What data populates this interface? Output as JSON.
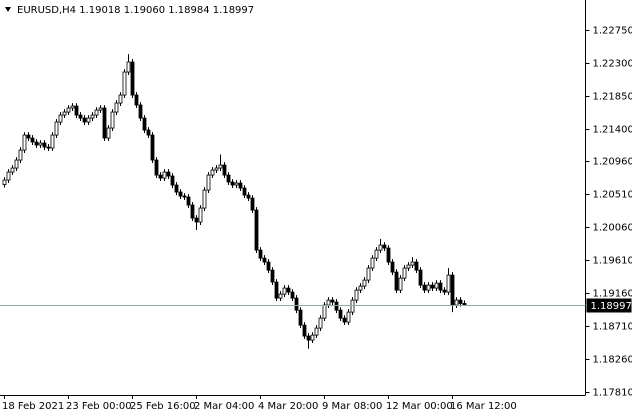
{
  "chart_data": {
    "type": "candlestick",
    "title": "EURUSD,H4  1.19018 1.19060 1.18984 1.18997",
    "ylim": [
      1.17769,
      1.23159
    ],
    "yticks": [
      {
        "value": 1.2275,
        "label": "1.22750"
      },
      {
        "value": 1.223,
        "label": "1.22300"
      },
      {
        "value": 1.2185,
        "label": "1.21850"
      },
      {
        "value": 1.214,
        "label": "1.21400"
      },
      {
        "value": 1.2096,
        "label": "1.20960"
      },
      {
        "value": 1.2051,
        "label": "1.20510"
      },
      {
        "value": 1.2006,
        "label": "1.20060"
      },
      {
        "value": 1.1961,
        "label": "1.19610"
      },
      {
        "value": 1.1916,
        "label": "1.19160"
      },
      {
        "value": 1.1871,
        "label": "1.18710"
      },
      {
        "value": 1.1826,
        "label": "1.18260"
      },
      {
        "value": 1.1781,
        "label": "1.17810"
      }
    ],
    "up_color": "#ffffff",
    "down_color": "#000000",
    "outline_color": "#000000",
    "price_line_color": "#8fa8a0",
    "categories": [
      "18 Feb 2021",
      null,
      null,
      null,
      null,
      null,
      null,
      null,
      null,
      null,
      null,
      null,
      null,
      null,
      null,
      null,
      "23 Feb 00:00",
      null,
      null,
      null,
      null,
      null,
      null,
      null,
      null,
      null,
      null,
      null,
      null,
      null,
      null,
      null,
      "25 Feb 16:00",
      null,
      null,
      null,
      null,
      null,
      null,
      null,
      null,
      null,
      null,
      null,
      null,
      null,
      null,
      null,
      "2 Mar 04:00",
      null,
      null,
      null,
      null,
      null,
      null,
      null,
      null,
      null,
      null,
      null,
      null,
      null,
      null,
      null,
      "4 Mar 20:00",
      null,
      null,
      null,
      null,
      null,
      null,
      null,
      null,
      null,
      null,
      null,
      null,
      null,
      null,
      null,
      "9 Mar 08:00",
      null,
      null,
      null,
      null,
      null,
      null,
      null,
      null,
      null,
      null,
      null,
      null,
      null,
      null,
      null,
      "12 Mar 00:00",
      null,
      null,
      null,
      null,
      null,
      null,
      null,
      null,
      null,
      null,
      null,
      null,
      null,
      null,
      null,
      "16 Mar 12:00",
      null,
      null,
      null
    ],
    "candles": [
      [
        1.2064,
        1.20742,
        1.206,
        1.20702
      ],
      [
        1.20702,
        1.20851,
        1.20662,
        1.20811
      ],
      [
        1.20811,
        1.20906,
        1.20771,
        1.20866
      ],
      [
        1.20866,
        1.21015,
        1.20826,
        1.20975
      ],
      [
        1.20975,
        1.21151,
        1.20935,
        1.21111
      ],
      [
        1.21111,
        1.21356,
        1.21071,
        1.21316
      ],
      [
        1.21316,
        1.21356,
        1.21235,
        1.21275
      ],
      [
        1.21275,
        1.21315,
        1.21181,
        1.21221
      ],
      [
        1.21221,
        1.21261,
        1.2114,
        1.2118
      ],
      [
        1.2118,
        1.21247,
        1.2114,
        1.21207
      ],
      [
        1.21207,
        1.21247,
        1.21112,
        1.21152
      ],
      [
        1.21152,
        1.21192,
        1.21099,
        1.21139
      ],
      [
        1.21139,
        1.21356,
        1.21099,
        1.21316
      ],
      [
        1.21316,
        1.21534,
        1.21276,
        1.21494
      ],
      [
        1.21494,
        1.21629,
        1.21454,
        1.21589
      ],
      [
        1.21589,
        1.2167,
        1.21549,
        1.2163
      ],
      [
        1.2163,
        1.21725,
        1.2159,
        1.21685
      ],
      [
        1.21685,
        1.21752,
        1.21645,
        1.21712
      ],
      [
        1.21712,
        1.21752,
        1.21549,
        1.21589
      ],
      [
        1.21589,
        1.21629,
        1.21508,
        1.21548
      ],
      [
        1.21548,
        1.21588,
        1.21454,
        1.21494
      ],
      [
        1.21494,
        1.21588,
        1.21454,
        1.21548
      ],
      [
        1.21548,
        1.21629,
        1.21508,
        1.21589
      ],
      [
        1.21589,
        1.21697,
        1.21549,
        1.21657
      ],
      [
        1.21657,
        1.21725,
        1.21617,
        1.21685
      ],
      [
        1.21685,
        1.21725,
        1.21235,
        1.21275
      ],
      [
        1.21275,
        1.21452,
        1.21235,
        1.21412
      ],
      [
        1.21412,
        1.2167,
        1.21372,
        1.2163
      ],
      [
        1.2163,
        1.21793,
        1.2159,
        1.21753
      ],
      [
        1.21753,
        1.21902,
        1.21713,
        1.21862
      ],
      [
        1.21862,
        1.22216,
        1.21822,
        1.22176
      ],
      [
        1.22176,
        1.2242,
        1.22136,
        1.22313
      ],
      [
        1.22313,
        1.22353,
        1.21822,
        1.21862
      ],
      [
        1.21862,
        1.21902,
        1.21686,
        1.21726
      ],
      [
        1.21726,
        1.21766,
        1.21508,
        1.21548
      ],
      [
        1.21548,
        1.21588,
        1.21344,
        1.21384
      ],
      [
        1.21384,
        1.21424,
        1.21276,
        1.21316
      ],
      [
        1.21316,
        1.21356,
        1.20935,
        1.20975
      ],
      [
        1.20975,
        1.21015,
        1.2073,
        1.2077
      ],
      [
        1.2077,
        1.2081,
        1.20689,
        1.20729
      ],
      [
        1.20729,
        1.20851,
        1.20689,
        1.20811
      ],
      [
        1.20811,
        1.20851,
        1.20717,
        1.20757
      ],
      [
        1.20757,
        1.20797,
        1.20594,
        1.20634
      ],
      [
        1.20634,
        1.20674,
        1.20498,
        1.20538
      ],
      [
        1.20538,
        1.20578,
        1.20444,
        1.20484
      ],
      [
        1.20484,
        1.20524,
        1.2043,
        1.2047
      ],
      [
        1.2047,
        1.2051,
        1.20321,
        1.20361
      ],
      [
        1.20361,
        1.20401,
        1.20143,
        1.20183
      ],
      [
        1.20183,
        1.20223,
        1.2002,
        1.20129
      ],
      [
        1.20129,
        1.2036,
        1.20089,
        1.2032
      ],
      [
        1.2032,
        1.20605,
        1.2028,
        1.20565
      ],
      [
        1.20565,
        1.2081,
        1.20525,
        1.2077
      ],
      [
        1.2077,
        1.20878,
        1.2073,
        1.20838
      ],
      [
        1.20838,
        1.20906,
        1.20798,
        1.20866
      ],
      [
        1.20866,
        1.2105,
        1.20826,
        1.20907
      ],
      [
        1.20907,
        1.20947,
        1.2073,
        1.2077
      ],
      [
        1.2077,
        1.2081,
        1.20635,
        1.20675
      ],
      [
        1.20675,
        1.20715,
        1.20594,
        1.20634
      ],
      [
        1.20634,
        1.20701,
        1.20594,
        1.20661
      ],
      [
        1.20661,
        1.20701,
        1.20553,
        1.20593
      ],
      [
        1.20593,
        1.20633,
        1.20457,
        1.20497
      ],
      [
        1.20497,
        1.20537,
        1.20416,
        1.20456
      ],
      [
        1.20456,
        1.20496,
        1.20252,
        1.20292
      ],
      [
        1.20292,
        1.20332,
        1.19706,
        1.19746
      ],
      [
        1.19746,
        1.19786,
        1.19597,
        1.19637
      ],
      [
        1.19637,
        1.19677,
        1.19543,
        1.19583
      ],
      [
        1.19583,
        1.19623,
        1.19433,
        1.19473
      ],
      [
        1.19473,
        1.19513,
        1.1927,
        1.1931
      ],
      [
        1.1931,
        1.1935,
        1.19051,
        1.19091
      ],
      [
        1.19091,
        1.19186,
        1.19051,
        1.19146
      ],
      [
        1.19146,
        1.19268,
        1.19106,
        1.19228
      ],
      [
        1.19228,
        1.19268,
        1.19133,
        1.19173
      ],
      [
        1.19173,
        1.19213,
        1.19051,
        1.19091
      ],
      [
        1.19091,
        1.19131,
        1.18887,
        1.18927
      ],
      [
        1.18927,
        1.18967,
        1.18683,
        1.18723
      ],
      [
        1.18723,
        1.18763,
        1.18533,
        1.18573
      ],
      [
        1.18573,
        1.18613,
        1.184,
        1.18518
      ],
      [
        1.18518,
        1.18626,
        1.18478,
        1.18586
      ],
      [
        1.18586,
        1.18722,
        1.18546,
        1.18682
      ],
      [
        1.18682,
        1.18858,
        1.18642,
        1.18818
      ],
      [
        1.18818,
        1.19036,
        1.18778,
        1.18996
      ],
      [
        1.18996,
        1.19104,
        1.18956,
        1.19064
      ],
      [
        1.19064,
        1.19104,
        1.18997,
        1.19037
      ],
      [
        1.19037,
        1.19077,
        1.18887,
        1.18927
      ],
      [
        1.18927,
        1.18967,
        1.18778,
        1.18818
      ],
      [
        1.18818,
        1.18858,
        1.18724,
        1.18764
      ],
      [
        1.18764,
        1.1894,
        1.18724,
        1.189
      ],
      [
        1.189,
        1.19104,
        1.1886,
        1.19064
      ],
      [
        1.19064,
        1.1924,
        1.19024,
        1.192
      ],
      [
        1.192,
        1.19295,
        1.1916,
        1.19255
      ],
      [
        1.19255,
        1.19377,
        1.19215,
        1.19337
      ],
      [
        1.19337,
        1.19541,
        1.19297,
        1.19501
      ],
      [
        1.19501,
        1.19677,
        1.19461,
        1.19637
      ],
      [
        1.19637,
        1.19786,
        1.19597,
        1.19746
      ],
      [
        1.19746,
        1.199,
        1.19706,
        1.19815
      ],
      [
        1.19815,
        1.19855,
        1.19734,
        1.19774
      ],
      [
        1.19774,
        1.19814,
        1.19543,
        1.19583
      ],
      [
        1.19583,
        1.19623,
        1.19406,
        1.19446
      ],
      [
        1.19446,
        1.19486,
        1.1916,
        1.192
      ],
      [
        1.192,
        1.19404,
        1.1916,
        1.19364
      ],
      [
        1.19364,
        1.19541,
        1.19324,
        1.19501
      ],
      [
        1.19501,
        1.19582,
        1.19461,
        1.19542
      ],
      [
        1.19542,
        1.1965,
        1.19502,
        1.19583
      ],
      [
        1.19583,
        1.19623,
        1.19433,
        1.19473
      ],
      [
        1.19473,
        1.19513,
        1.19229,
        1.19269
      ],
      [
        1.19269,
        1.19309,
        1.1916,
        1.192
      ],
      [
        1.192,
        1.19309,
        1.1916,
        1.19269
      ],
      [
        1.19269,
        1.19309,
        1.19188,
        1.19228
      ],
      [
        1.19228,
        1.19336,
        1.19188,
        1.19296
      ],
      [
        1.19296,
        1.19336,
        1.1916,
        1.192
      ],
      [
        1.192,
        1.1924,
        1.19133,
        1.19173
      ],
      [
        1.19173,
        1.195,
        1.19133,
        1.19405
      ],
      [
        1.19405,
        1.19445,
        1.189,
        1.18996
      ],
      [
        1.18996,
        1.19104,
        1.18956,
        1.19064
      ],
      [
        1.19064,
        1.19104,
        1.18978,
        1.19018
      ],
      [
        1.19018,
        1.1906,
        1.18984,
        1.18997
      ]
    ]
  }
}
